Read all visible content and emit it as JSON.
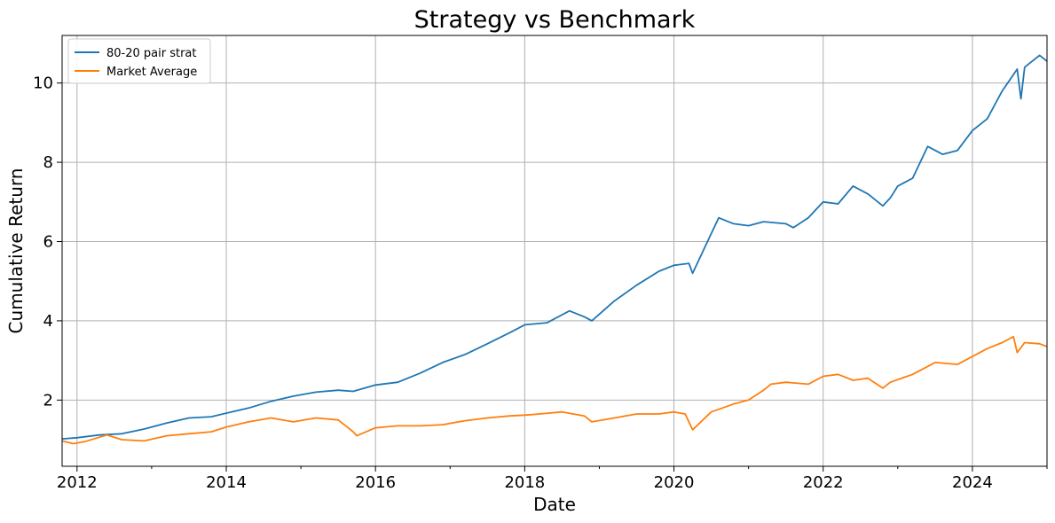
{
  "chart_data": {
    "type": "line",
    "title": "Strategy vs Benchmark",
    "xlabel": "Date",
    "ylabel": "Cumulative Return",
    "xlim": [
      2011.8,
      2025.0
    ],
    "ylim": [
      0.33,
      11.2
    ],
    "x_ticks": [
      2012,
      2014,
      2016,
      2018,
      2020,
      2022,
      2024
    ],
    "x_tick_labels": [
      "2012",
      "2014",
      "2016",
      "2018",
      "2020",
      "2022",
      "2024"
    ],
    "y_ticks": [
      2,
      4,
      6,
      8,
      10
    ],
    "y_tick_labels": [
      "2",
      "4",
      "6",
      "8",
      "10"
    ],
    "grid": true,
    "legend_position": "top-left",
    "series": [
      {
        "name": "80-20 pair strat",
        "color": "#1f77b4",
        "x": [
          2011.8,
          2012.0,
          2012.3,
          2012.6,
          2012.9,
          2013.2,
          2013.5,
          2013.8,
          2014.0,
          2014.3,
          2014.6,
          2014.9,
          2015.2,
          2015.5,
          2015.7,
          2016.0,
          2016.3,
          2016.6,
          2016.9,
          2017.2,
          2017.5,
          2017.8,
          2018.0,
          2018.3,
          2018.6,
          2018.8,
          2018.9,
          2019.2,
          2019.5,
          2019.8,
          2020.0,
          2020.2,
          2020.25,
          2020.4,
          2020.6,
          2020.8,
          2021.0,
          2021.2,
          2021.5,
          2021.6,
          2021.8,
          2022.0,
          2022.2,
          2022.4,
          2022.6,
          2022.8,
          2022.9,
          2023.0,
          2023.2,
          2023.4,
          2023.6,
          2023.8,
          2024.0,
          2024.2,
          2024.4,
          2024.6,
          2024.65,
          2024.7,
          2024.9,
          2025.0
        ],
        "values": [
          1.02,
          1.05,
          1.12,
          1.15,
          1.27,
          1.42,
          1.55,
          1.58,
          1.67,
          1.8,
          1.97,
          2.1,
          2.2,
          2.25,
          2.22,
          2.38,
          2.45,
          2.68,
          2.95,
          3.15,
          3.42,
          3.7,
          3.9,
          3.95,
          4.25,
          4.1,
          4.0,
          4.5,
          4.9,
          5.25,
          5.4,
          5.45,
          5.2,
          5.8,
          6.6,
          6.45,
          6.4,
          6.5,
          6.45,
          6.35,
          6.6,
          7.0,
          6.95,
          7.4,
          7.2,
          6.9,
          7.1,
          7.4,
          7.6,
          8.4,
          8.2,
          8.3,
          8.8,
          9.1,
          9.8,
          10.35,
          9.6,
          10.4,
          10.7,
          10.55
        ]
      },
      {
        "name": "Market Average",
        "color": "#ff7f0e",
        "x": [
          2011.8,
          2011.95,
          2012.1,
          2012.4,
          2012.6,
          2012.9,
          2013.2,
          2013.5,
          2013.8,
          2014.0,
          2014.3,
          2014.6,
          2014.9,
          2015.2,
          2015.5,
          2015.7,
          2015.75,
          2016.0,
          2016.3,
          2016.6,
          2016.9,
          2017.2,
          2017.5,
          2017.8,
          2018.0,
          2018.2,
          2018.5,
          2018.8,
          2018.9,
          2019.2,
          2019.5,
          2019.8,
          2020.0,
          2020.15,
          2020.25,
          2020.5,
          2020.8,
          2021.0,
          2021.2,
          2021.3,
          2021.5,
          2021.8,
          2022.0,
          2022.2,
          2022.4,
          2022.6,
          2022.8,
          2022.9,
          2023.2,
          2023.5,
          2023.8,
          2024.0,
          2024.2,
          2024.4,
          2024.55,
          2024.6,
          2024.7,
          2024.9,
          2025.0
        ],
        "values": [
          0.97,
          0.9,
          0.95,
          1.12,
          1.0,
          0.97,
          1.1,
          1.15,
          1.2,
          1.32,
          1.45,
          1.55,
          1.45,
          1.55,
          1.5,
          1.2,
          1.1,
          1.3,
          1.35,
          1.35,
          1.38,
          1.48,
          1.55,
          1.6,
          1.62,
          1.65,
          1.7,
          1.6,
          1.45,
          1.55,
          1.65,
          1.65,
          1.7,
          1.65,
          1.25,
          1.7,
          1.9,
          2.0,
          2.25,
          2.4,
          2.45,
          2.4,
          2.6,
          2.65,
          2.5,
          2.55,
          2.3,
          2.45,
          2.65,
          2.95,
          2.9,
          3.1,
          3.3,
          3.45,
          3.6,
          3.2,
          3.45,
          3.42,
          3.35
        ]
      }
    ]
  }
}
